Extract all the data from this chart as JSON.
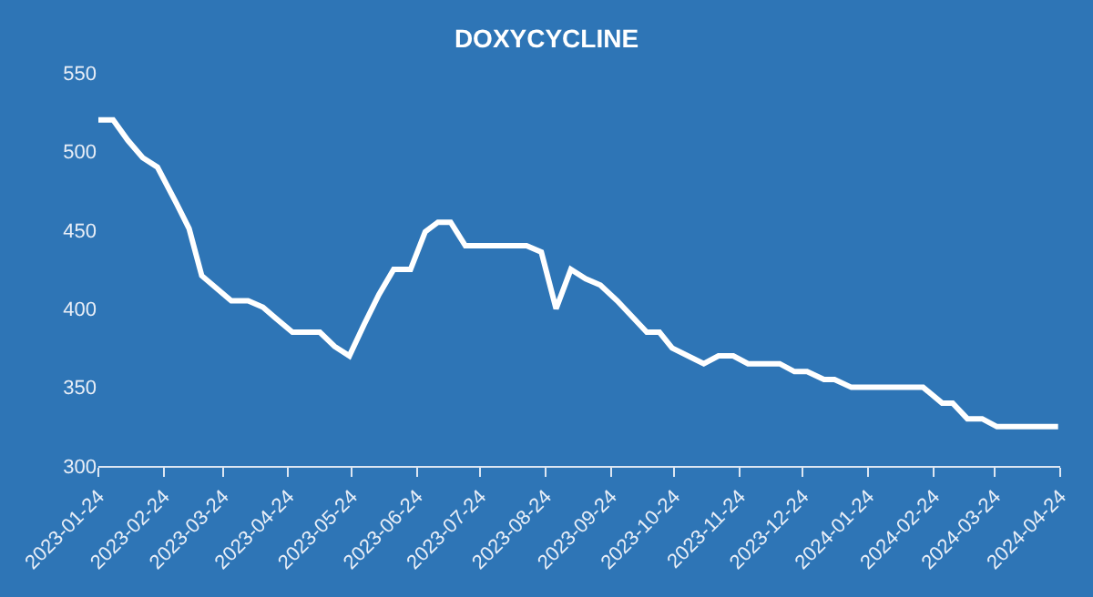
{
  "chart_data": {
    "type": "line",
    "title": "DOXYCYCLINE",
    "x": [
      "2023-01-24",
      "2023-01-31",
      "2023-02-07",
      "2023-02-14",
      "2023-02-21",
      "2023-03-02",
      "2023-03-08",
      "2023-03-14",
      "2023-03-28",
      "2023-04-05",
      "2023-04-12",
      "2023-04-18",
      "2023-04-26",
      "2023-05-09",
      "2023-05-16",
      "2023-05-23",
      "2023-05-30",
      "2023-06-06",
      "2023-06-13",
      "2023-06-21",
      "2023-06-28",
      "2023-07-04",
      "2023-07-10",
      "2023-07-17",
      "2023-08-15",
      "2023-08-22",
      "2023-08-29",
      "2023-09-05",
      "2023-09-12",
      "2023-09-19",
      "2023-09-27",
      "2023-10-11",
      "2023-10-17",
      "2023-10-23",
      "2023-11-07",
      "2023-11-14",
      "2023-11-21",
      "2023-11-28",
      "2023-12-13",
      "2023-12-20",
      "2023-12-26",
      "2024-01-03",
      "2024-01-08",
      "2024-01-16",
      "2024-02-19",
      "2024-02-28",
      "2024-03-04",
      "2024-03-11",
      "2024-03-18",
      "2024-03-25",
      "2024-04-23"
    ],
    "series": [
      {
        "color": "#ffffff",
        "values": [
          520,
          520,
          507,
          496,
          490,
          467,
          451,
          421,
          405,
          405,
          401,
          394,
          385,
          385,
          376,
          370,
          390,
          409,
          425,
          425,
          449,
          455,
          455,
          440,
          440,
          436,
          400,
          425,
          419,
          415,
          405,
          385,
          385,
          375,
          365,
          370,
          370,
          365,
          365,
          360,
          360,
          355,
          355,
          350,
          350,
          340,
          340,
          330,
          330,
          325,
          325
        ]
      }
    ],
    "xlim": [
      "2023-01-24",
      "2024-04-24"
    ],
    "xticks": [
      "2023-01-24",
      "2023-02-24",
      "2023-03-24",
      "2023-04-24",
      "2023-05-24",
      "2023-06-24",
      "2023-07-24",
      "2023-08-24",
      "2023-09-24",
      "2023-10-24",
      "2023-11-24",
      "2023-12-24",
      "2024-01-24",
      "2024-02-24",
      "2024-03-24",
      "2024-04-24"
    ],
    "ylim": [
      300,
      550
    ],
    "yticks": [
      300,
      350,
      400,
      450,
      500,
      550
    ],
    "grid": false,
    "legend": false,
    "marker": "none",
    "line_style": "solid"
  }
}
